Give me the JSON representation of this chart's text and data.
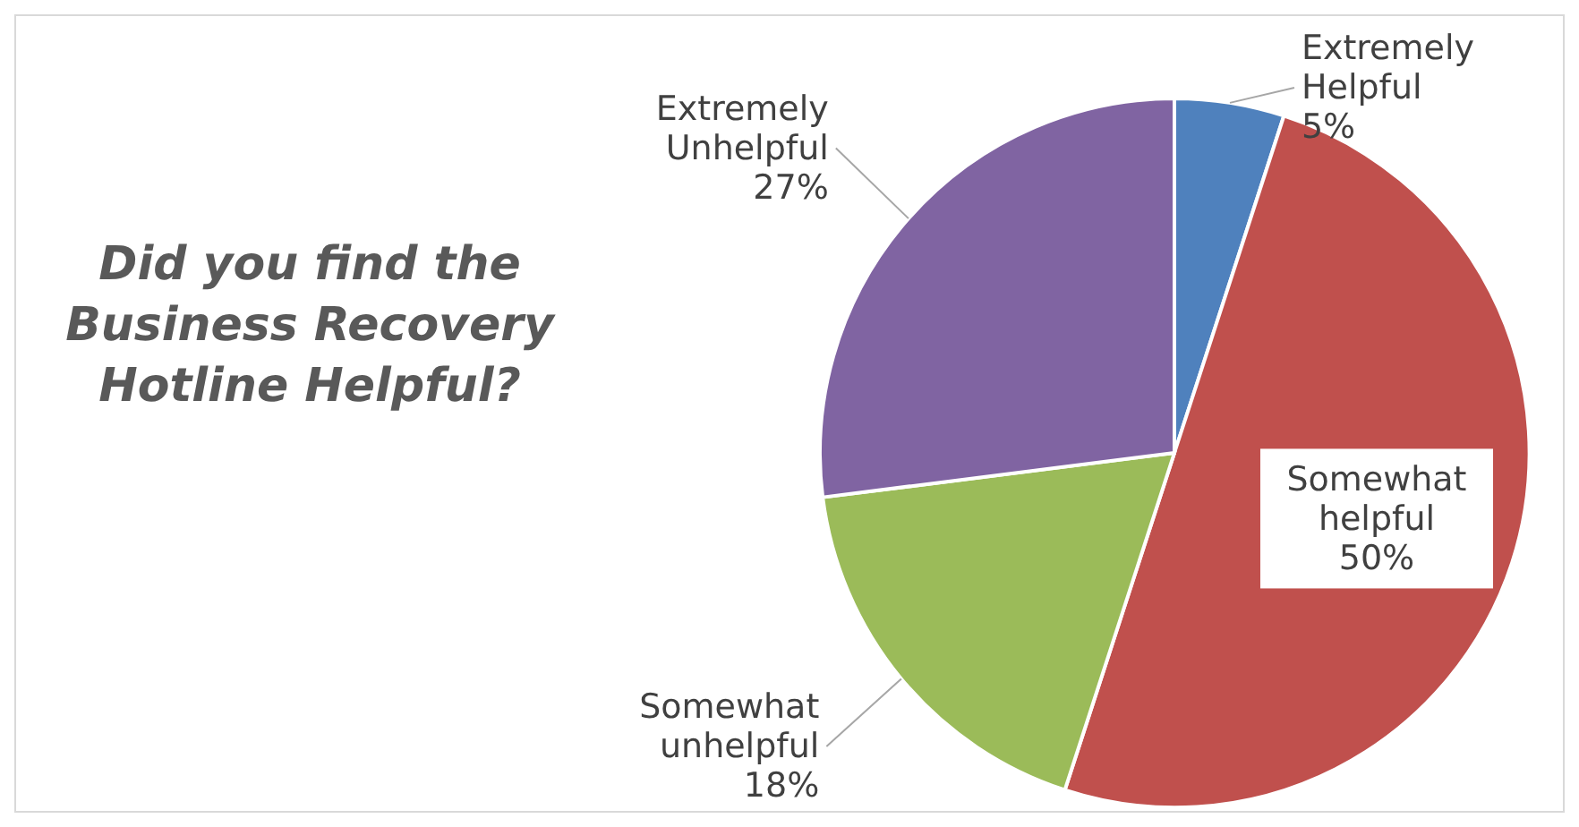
{
  "chart_data": {
    "type": "pie",
    "title": "Did you find the Business Recovery Hotline Helpful?",
    "categories": [
      "Extremely Helpful",
      "Somewhat helpful",
      "Somewhat unhelpful",
      "Extremely Unhelpful"
    ],
    "values": [
      5,
      50,
      18,
      27
    ],
    "colors": [
      "#4f81bd",
      "#c0504d",
      "#9bbb59",
      "#8064a2"
    ],
    "value_labels": [
      "5%",
      "50%",
      "18%",
      "27%"
    ]
  }
}
